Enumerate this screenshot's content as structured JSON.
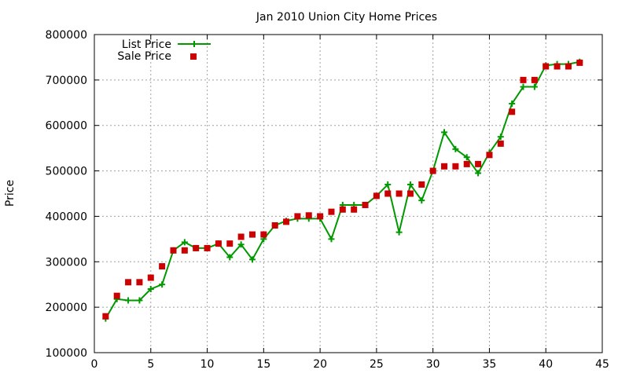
{
  "chart_data": {
    "type": "line",
    "title": "Jan 2010 Union City Home Prices",
    "xlabel": "",
    "ylabel": "Price",
    "xlim": [
      0,
      45
    ],
    "ylim": [
      100000,
      800000
    ],
    "xticks": [
      0,
      5,
      10,
      15,
      20,
      25,
      30,
      35,
      40,
      45
    ],
    "yticks": [
      100000,
      200000,
      300000,
      400000,
      500000,
      600000,
      700000,
      800000
    ],
    "grid": true,
    "legend_position": "top-left",
    "series": [
      {
        "name": "List Price",
        "style": "line-plus",
        "color": "#009900",
        "x": [
          1,
          2,
          3,
          4,
          5,
          6,
          7,
          8,
          9,
          10,
          11,
          12,
          13,
          14,
          15,
          16,
          17,
          18,
          19,
          20,
          21,
          22,
          23,
          24,
          25,
          26,
          27,
          28,
          29,
          30,
          31,
          32,
          33,
          34,
          35,
          36,
          37,
          38,
          39,
          40,
          41,
          42,
          43
        ],
        "y": [
          175000,
          218000,
          215000,
          215000,
          240000,
          250000,
          325000,
          343000,
          330000,
          330000,
          340000,
          310000,
          338000,
          305000,
          350000,
          380000,
          390000,
          395000,
          395000,
          395000,
          350000,
          425000,
          425000,
          425000,
          445000,
          470000,
          365000,
          470000,
          435000,
          500000,
          585000,
          548000,
          530000,
          495000,
          540000,
          575000,
          648000,
          685000,
          685000,
          732000,
          735000,
          735000,
          740000
        ]
      },
      {
        "name": "Sale Price",
        "style": "square-marker",
        "color": "#cc0000",
        "x": [
          1,
          2,
          3,
          4,
          5,
          6,
          7,
          8,
          9,
          10,
          11,
          12,
          13,
          14,
          15,
          16,
          17,
          18,
          19,
          20,
          21,
          22,
          23,
          24,
          25,
          26,
          27,
          28,
          29,
          30,
          31,
          32,
          33,
          34,
          35,
          36,
          37,
          38,
          39,
          40,
          41,
          42,
          43
        ],
        "y": [
          180000,
          225000,
          255000,
          255000,
          265000,
          290000,
          325000,
          325000,
          330000,
          330000,
          340000,
          340000,
          355000,
          360000,
          360000,
          380000,
          388000,
          400000,
          402000,
          400000,
          410000,
          415000,
          415000,
          425000,
          445000,
          450000,
          450000,
          450000,
          470000,
          500000,
          510000,
          510000,
          515000,
          515000,
          535000,
          560000,
          630000,
          700000,
          700000,
          730000,
          730000,
          730000,
          738000
        ]
      }
    ]
  }
}
